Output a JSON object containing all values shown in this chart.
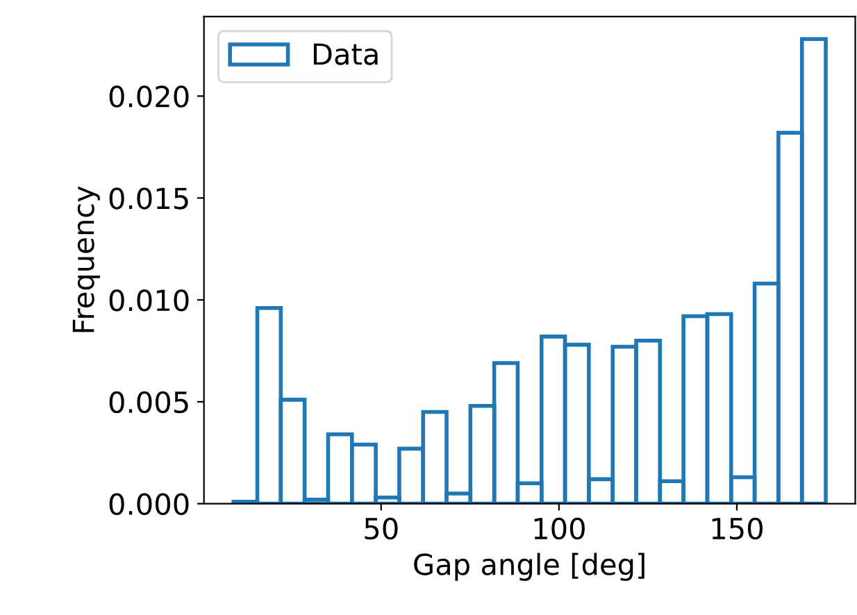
{
  "chart_data": {
    "type": "histogram",
    "xlabel": "Gap angle [deg]",
    "ylabel": "Frequency",
    "bins": [
      8.5,
      15.2,
      21.8,
      28.5,
      35.1,
      41.8,
      48.5,
      55.1,
      61.8,
      68.4,
      75.1,
      81.8,
      88.4,
      95.1,
      101.7,
      108.4,
      115.1,
      121.7,
      128.4,
      135.0,
      141.7,
      148.4,
      155.0,
      161.7,
      168.3,
      175.0
    ],
    "series": [
      {
        "name": "Data",
        "color": "#1f77b4",
        "values": [
          0.0001,
          0.0096,
          0.0051,
          0.0002,
          0.0034,
          0.0029,
          0.0003,
          0.0027,
          0.0045,
          0.0005,
          0.0048,
          0.0069,
          0.001,
          0.0082,
          0.0078,
          0.0012,
          0.0077,
          0.008,
          0.0011,
          0.0092,
          0.0093,
          0.0013,
          0.0108,
          0.0182,
          0.0228
        ]
      }
    ],
    "xlim": [
      0.2,
      183.3
    ],
    "xticks": [
      50,
      100,
      150
    ],
    "ylim": [
      0,
      0.0239
    ],
    "yticks": [
      {
        "value": 0,
        "label": "0.000"
      },
      {
        "value": 0.005,
        "label": "0.005"
      },
      {
        "value": 0.01,
        "label": "0.010"
      },
      {
        "value": 0.015,
        "label": "0.015"
      },
      {
        "value": 0.02,
        "label": "0.020"
      }
    ],
    "legend": "top left",
    "grid": false
  }
}
